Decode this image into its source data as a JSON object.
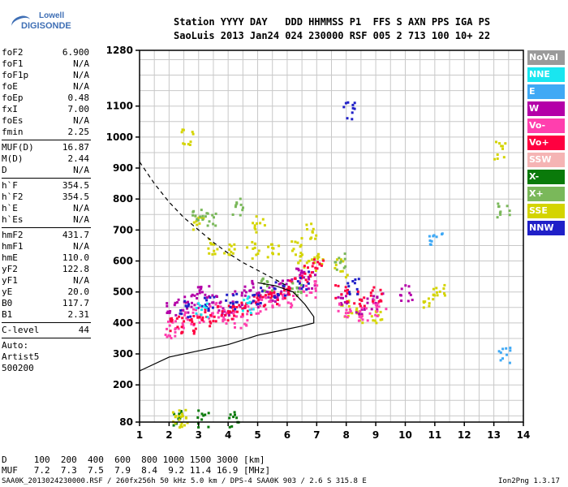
{
  "logo": {
    "line1": "Lowell",
    "line2": "DIGISONDE"
  },
  "header": {
    "row1": "Station YYYY DAY   DDD HHMMSS P1  FFS S AXN PPS IGA PS",
    "row2": "SaoLuis 2013 Jan24 024 230000 RSF 005 2 713 100 10+ 22"
  },
  "params_group1": [
    {
      "k": "foF2",
      "v": "6.900"
    },
    {
      "k": "foF1",
      "v": "N/A"
    },
    {
      "k": "foF1p",
      "v": "N/A"
    },
    {
      "k": "foE",
      "v": "N/A"
    },
    {
      "k": "foEp",
      "v": "0.48"
    },
    {
      "k": "fxI",
      "v": "7.00"
    },
    {
      "k": "foEs",
      "v": "N/A"
    },
    {
      "k": "fmin",
      "v": "2.25"
    }
  ],
  "params_group2": [
    {
      "k": "MUF(D)",
      "v": "16.87"
    },
    {
      "k": "M(D)",
      "v": "2.44"
    },
    {
      "k": "D",
      "v": "N/A"
    }
  ],
  "params_group3": [
    {
      "k": "h`F",
      "v": "354.5"
    },
    {
      "k": "h`F2",
      "v": "354.5"
    },
    {
      "k": "h`E",
      "v": "N/A"
    },
    {
      "k": "h`Es",
      "v": "N/A"
    }
  ],
  "params_group4": [
    {
      "k": "hmF2",
      "v": "431.7"
    },
    {
      "k": "hmF1",
      "v": "N/A"
    },
    {
      "k": "hmE",
      "v": "110.0"
    },
    {
      "k": "yF2",
      "v": "122.8"
    },
    {
      "k": "yF1",
      "v": "N/A"
    },
    {
      "k": "yE",
      "v": "20.0"
    },
    {
      "k": "B0",
      "v": "117.7"
    },
    {
      "k": "B1",
      "v": "2.31"
    }
  ],
  "params_group5": [
    {
      "k": "C-level",
      "v": "44"
    }
  ],
  "auto": {
    "l1": "Auto:",
    "l2": "Artist5",
    "l3": "500200"
  },
  "dmuf": {
    "d_row": "D     100  200  400  600  800 1000 1500 3000 [km]",
    "muf_row": "MUF   7.2  7.3  7.5  7.9  8.4  9.2 11.4 16.9 [MHz]"
  },
  "footer": {
    "left": "SAA0K_2013024230000.RSF / 260fx256h 50 kHz 5.0 km / DPS-4 SAA0K 903 / 2.6 S 315.8 E",
    "right": "Ion2Png 1.3.17"
  },
  "legend": [
    {
      "label": "NoVal",
      "color": "#9a9a9a"
    },
    {
      "label": "NNE",
      "color": "#19e6f0"
    },
    {
      "label": "E",
      "color": "#3fa9f5"
    },
    {
      "label": "W",
      "color": "#b400a8"
    },
    {
      "label": "Vo-",
      "color": "#ff3fae"
    },
    {
      "label": "Vo+",
      "color": "#ff0040"
    },
    {
      "label": "SSW",
      "color": "#f5b4b4"
    },
    {
      "label": "X-",
      "color": "#0a7a0a"
    },
    {
      "label": "X+",
      "color": "#7ab85a"
    },
    {
      "label": "SSE",
      "color": "#d4d400"
    },
    {
      "label": "NNW",
      "color": "#2020c8"
    }
  ],
  "chart_data": {
    "type": "scatter",
    "title": "",
    "xlabel": "",
    "ylabel": "",
    "xlim": [
      1,
      14
    ],
    "ylim": [
      80,
      1280
    ],
    "x_ticks": [
      "1",
      "2",
      "3",
      "4",
      "5",
      "6",
      "7",
      "8",
      "9",
      "10",
      "11",
      "12",
      "13",
      "14"
    ],
    "y_ticks": [
      "80",
      "200",
      "300",
      "400",
      "500",
      "600",
      "700",
      "800",
      "900",
      "1000",
      "1100",
      "1280"
    ],
    "grid": true,
    "series": [
      {
        "name": "X-",
        "values": [
          [
            2.3,
            95
          ],
          [
            3.1,
            95
          ],
          [
            4.2,
            92
          ]
        ],
        "color": "#0a7a0a"
      },
      {
        "name": "SSE",
        "values": [
          [
            2.2,
            100
          ],
          [
            2.5,
            95
          ],
          [
            2.6,
            1000
          ],
          [
            3.0,
            720
          ],
          [
            3.5,
            650
          ],
          [
            4.0,
            652
          ],
          [
            4.8,
            640
          ],
          [
            5.0,
            720
          ],
          [
            5.5,
            630
          ],
          [
            6.3,
            650
          ],
          [
            6.5,
            610
          ],
          [
            6.8,
            700
          ],
          [
            7.0,
            600
          ],
          [
            7.8,
            580
          ],
          [
            8.0,
            450
          ],
          [
            8.5,
            430
          ],
          [
            9.0,
            425
          ],
          [
            10.8,
            470
          ],
          [
            11.1,
            510
          ],
          [
            13.2,
            960
          ]
        ],
        "color": "#d4d400"
      },
      {
        "name": "W",
        "values": [
          [
            2.1,
            440
          ],
          [
            2.4,
            460
          ],
          [
            2.8,
            480
          ],
          [
            3.1,
            500
          ],
          [
            3.5,
            470
          ],
          [
            3.9,
            450
          ],
          [
            4.3,
            480
          ],
          [
            4.7,
            510
          ],
          [
            5.1,
            480
          ],
          [
            5.5,
            500
          ],
          [
            5.9,
            520
          ],
          [
            6.3,
            560
          ],
          [
            6.7,
            540
          ],
          [
            7.9,
            470
          ],
          [
            8.5,
            460
          ],
          [
            9.0,
            470
          ],
          [
            10.0,
            500
          ]
        ],
        "color": "#b400a8"
      },
      {
        "name": "Vo-",
        "values": [
          [
            2.0,
            380
          ],
          [
            2.3,
            410
          ],
          [
            2.7,
            420
          ],
          [
            3.2,
            430
          ],
          [
            3.6,
            440
          ],
          [
            4.0,
            420
          ],
          [
            4.4,
            410
          ],
          [
            4.8,
            450
          ],
          [
            5.2,
            460
          ],
          [
            5.6,
            480
          ],
          [
            6.0,
            470
          ],
          [
            6.4,
            530
          ],
          [
            6.8,
            510
          ],
          [
            7.9,
            450
          ],
          [
            8.6,
            430
          ],
          [
            9.1,
            450
          ]
        ],
        "color": "#ff3fae"
      },
      {
        "name": "Vo+",
        "values": [
          [
            2.2,
            400
          ],
          [
            2.6,
            390
          ],
          [
            3.0,
            410
          ],
          [
            3.4,
            420
          ],
          [
            3.8,
            430
          ],
          [
            4.2,
            440
          ],
          [
            4.6,
            460
          ],
          [
            5.0,
            470
          ],
          [
            5.4,
            490
          ],
          [
            5.8,
            500
          ],
          [
            6.2,
            520
          ],
          [
            6.6,
            560
          ],
          [
            7.0,
            580
          ],
          [
            7.8,
            500
          ],
          [
            8.4,
            480
          ],
          [
            9.0,
            490
          ]
        ],
        "color": "#ff0040"
      },
      {
        "name": "NNW",
        "values": [
          [
            2.5,
            450
          ],
          [
            3.3,
            460
          ],
          [
            4.1,
            470
          ],
          [
            4.9,
            490
          ],
          [
            5.7,
            510
          ],
          [
            6.5,
            540
          ],
          [
            8.1,
            1090
          ],
          [
            8.2,
            520
          ]
        ],
        "color": "#2020c8"
      },
      {
        "name": "X+",
        "values": [
          [
            2.9,
            760
          ],
          [
            3.4,
            730
          ],
          [
            4.3,
            780
          ],
          [
            5.3,
            520
          ],
          [
            6.3,
            520
          ],
          [
            7.8,
            600
          ],
          [
            13.3,
            760
          ]
        ],
        "color": "#7ab85a"
      },
      {
        "name": "E",
        "values": [
          [
            11.0,
            680
          ],
          [
            13.3,
            295
          ]
        ],
        "color": "#3fa9f5"
      },
      {
        "name": "NNE",
        "values": [
          [
            3.1,
            440
          ],
          [
            4.6,
            460
          ]
        ],
        "color": "#19e6f0"
      }
    ],
    "curves": [
      {
        "name": "",
        "style": "solid",
        "x": [
          1.0,
          2.0,
          3.0,
          4.0,
          5.0,
          6.0,
          6.5,
          6.9,
          6.9,
          6.6,
          6.2,
          5.6,
          5.0
        ],
        "y": [
          245,
          290,
          310,
          330,
          360,
          380,
          390,
          400,
          420,
          460,
          500,
          520,
          530
        ]
      },
      {
        "name": "",
        "style": "dashed",
        "x": [
          1.0,
          1.5,
          2.0,
          2.5,
          3.0,
          3.5,
          4.0,
          4.5,
          5.0,
          5.5,
          6.0
        ],
        "y": [
          920,
          850,
          790,
          740,
          700,
          660,
          625,
          595,
          570,
          545,
          520
        ]
      }
    ]
  }
}
